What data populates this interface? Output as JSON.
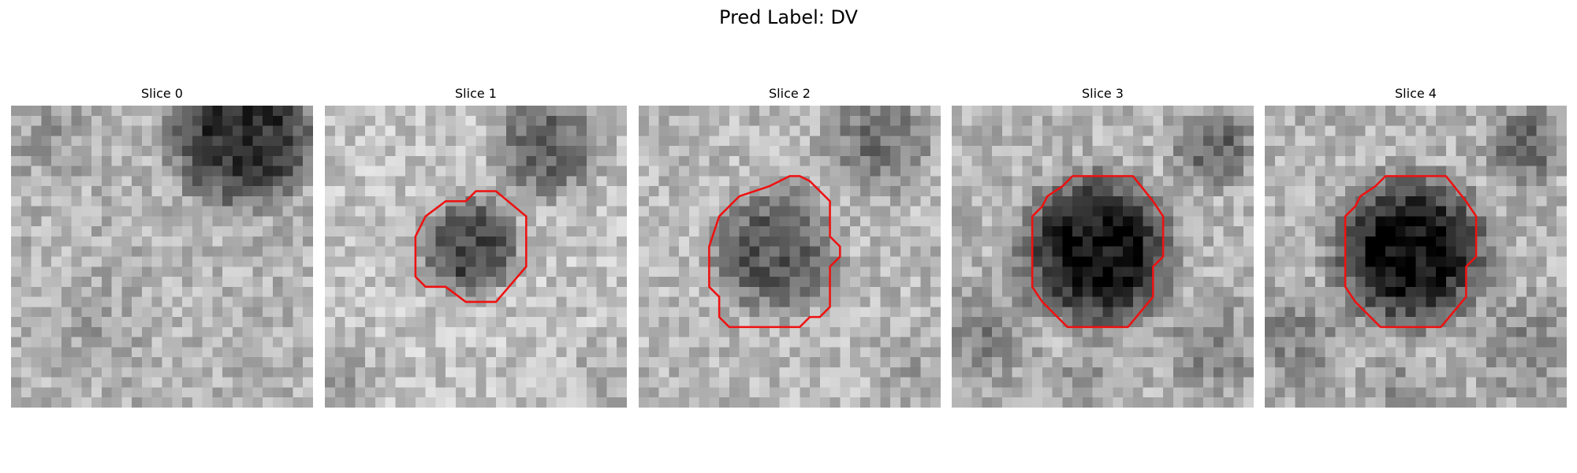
{
  "figure": {
    "suptitle": "Pred Label: DV",
    "contour_color": "#ee1111",
    "colormap": "gray"
  },
  "panels": [
    {
      "title": "Slice 0",
      "scene": "dark-corner",
      "contour": null,
      "seed": 11
    },
    {
      "title": "Slice 1",
      "scene": "small-lesion",
      "contour": [
        [
          15,
          8.5
        ],
        [
          17,
          8.5
        ],
        [
          20,
          11
        ],
        [
          20,
          16
        ],
        [
          17,
          19.5
        ],
        [
          14,
          19.5
        ],
        [
          12,
          18
        ],
        [
          10,
          18
        ],
        [
          9,
          17
        ],
        [
          9,
          13
        ],
        [
          10,
          11
        ],
        [
          12,
          9.5
        ],
        [
          14,
          9.5
        ]
      ],
      "seed": 23
    },
    {
      "title": "Slice 2",
      "scene": "medium-lesion",
      "contour": [
        [
          14,
          7.5
        ],
        [
          15,
          7
        ],
        [
          16,
          7
        ],
        [
          17,
          7.5
        ],
        [
          18,
          8.5
        ],
        [
          19,
          9.5
        ],
        [
          19,
          13
        ],
        [
          20,
          14
        ],
        [
          20,
          15
        ],
        [
          19,
          16
        ],
        [
          19,
          20
        ],
        [
          18,
          21
        ],
        [
          17,
          21
        ],
        [
          16,
          22
        ],
        [
          9,
          22
        ],
        [
          8,
          21
        ],
        [
          8,
          19
        ],
        [
          7,
          18
        ],
        [
          7,
          14
        ],
        [
          8,
          11
        ],
        [
          10,
          9
        ],
        [
          13,
          8
        ]
      ],
      "seed": 37
    },
    {
      "title": "Slice 3",
      "scene": "large-lesion",
      "contour": [
        [
          12,
          7
        ],
        [
          18,
          7
        ],
        [
          20,
          9.5
        ],
        [
          21,
          11
        ],
        [
          21,
          15
        ],
        [
          20,
          16
        ],
        [
          20,
          19
        ],
        [
          17.5,
          22
        ],
        [
          11.5,
          22
        ],
        [
          9,
          19.5
        ],
        [
          8,
          18
        ],
        [
          8,
          11
        ],
        [
          9,
          10
        ],
        [
          9.5,
          9
        ],
        [
          11,
          8
        ]
      ],
      "seed": 51
    },
    {
      "title": "Slice 4",
      "scene": "large-lesion",
      "contour": [
        [
          12,
          7
        ],
        [
          18,
          7
        ],
        [
          20,
          9.5
        ],
        [
          21,
          11
        ],
        [
          21,
          15
        ],
        [
          20,
          16
        ],
        [
          20,
          19
        ],
        [
          17.5,
          22
        ],
        [
          11.5,
          22
        ],
        [
          9,
          19.5
        ],
        [
          8,
          18
        ],
        [
          8,
          11
        ],
        [
          9,
          10
        ],
        [
          9.5,
          9
        ],
        [
          11,
          8
        ]
      ],
      "seed": 67
    }
  ]
}
